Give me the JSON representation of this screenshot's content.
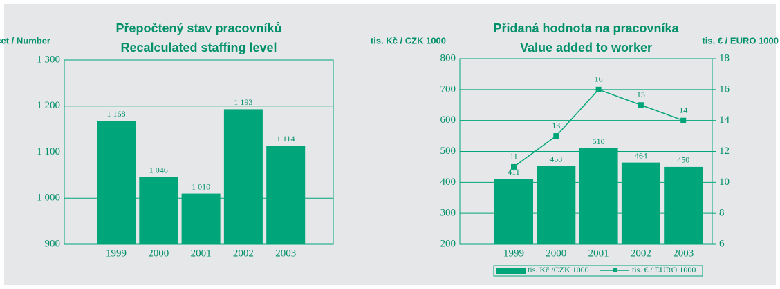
{
  "chart_data": [
    {
      "type": "bar",
      "title": "Přepočtený stav pracovníků",
      "subtitle": "Recalculated staffing level",
      "y_label": "Počet / Number",
      "categories": [
        "1999",
        "2000",
        "2001",
        "2002",
        "2003"
      ],
      "values": [
        1168,
        1046,
        1010,
        1193,
        1114
      ],
      "value_labels": [
        "1 168",
        "1 046",
        "1 010",
        "1 193",
        "1 114"
      ],
      "color": "#00a67a",
      "ylim": [
        900,
        1300
      ],
      "yticks": [
        900,
        {
          "value": 1000,
          "label": "1 000"
        },
        {
          "value": 1100,
          "label": "1 100"
        },
        {
          "value": 1200,
          "label": "1 200"
        },
        {
          "value": 1300,
          "label": "1 300"
        }
      ],
      "grid": true
    },
    {
      "type": "combo",
      "title": "Přidaná hodnota na pracovníka",
      "subtitle": "Value added to worker",
      "y_label": "tis. Kč / CZK 1000",
      "y2_label": "tis. € / EURO 1000",
      "categories": [
        "1999",
        "2000",
        "2001",
        "2002",
        "2003"
      ],
      "series": [
        {
          "name": "tis. Kč /CZK 1000",
          "color": "#00a67a",
          "values": [
            411,
            453,
            510,
            464,
            450
          ]
        },
        {
          "name": "tis. € / EURO 1000",
          "color": "#00a67a",
          "values": [
            11,
            13,
            16,
            15,
            14
          ],
          "axis": "y2"
        }
      ],
      "ylim": [
        200,
        800
      ],
      "yticks": [
        200,
        300,
        400,
        500,
        600,
        700,
        800
      ],
      "y2lim": [
        6,
        18
      ],
      "y2ticks": [
        6,
        8,
        10,
        12,
        14,
        16,
        18
      ],
      "grid": true,
      "legend": "bottom"
    }
  ]
}
